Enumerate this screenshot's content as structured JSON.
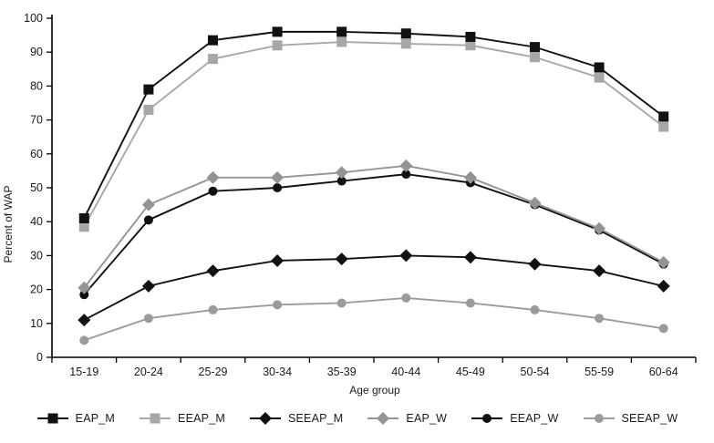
{
  "chart_data": {
    "type": "line",
    "title": "",
    "xlabel": "Age group",
    "ylabel": "Percent of WAP",
    "ylim": [
      0,
      100
    ],
    "ytick_step": 10,
    "grid": false,
    "legend_position": "bottom",
    "categories": [
      "15-19",
      "20-24",
      "25-29",
      "30-34",
      "35-39",
      "40-44",
      "45-49",
      "50-54",
      "55-59",
      "60-64"
    ],
    "series": [
      {
        "name": "EAP_M",
        "color": "#111111",
        "marker": "square",
        "values": [
          41,
          79,
          93.5,
          96,
          96,
          95.5,
          94.5,
          91.5,
          85.5,
          71
        ]
      },
      {
        "name": "EEAP_M",
        "color": "#a7a7a7",
        "marker": "square",
        "values": [
          38.5,
          73,
          88,
          92,
          93,
          92.5,
          92,
          88.5,
          82.5,
          68
        ]
      },
      {
        "name": "SEEAP_M",
        "color": "#111111",
        "marker": "diamond",
        "values": [
          11,
          21,
          25.5,
          28.5,
          29,
          30,
          29.5,
          27.5,
          25.5,
          21
        ]
      },
      {
        "name": "EAP_W",
        "color": "#949494",
        "marker": "diamond",
        "values": [
          20.5,
          45,
          53,
          53,
          54.5,
          56.5,
          53,
          45.5,
          38,
          28
        ]
      },
      {
        "name": "EEAP_W",
        "color": "#111111",
        "marker": "circle",
        "values": [
          18.5,
          40.5,
          49,
          50,
          52,
          54,
          51.5,
          45,
          37.5,
          27.5
        ]
      },
      {
        "name": "SEEAP_W",
        "color": "#9b9b9b",
        "marker": "circle",
        "values": [
          5,
          11.5,
          14,
          15.5,
          16,
          17.5,
          16,
          14,
          11.5,
          8.5
        ]
      }
    ]
  }
}
